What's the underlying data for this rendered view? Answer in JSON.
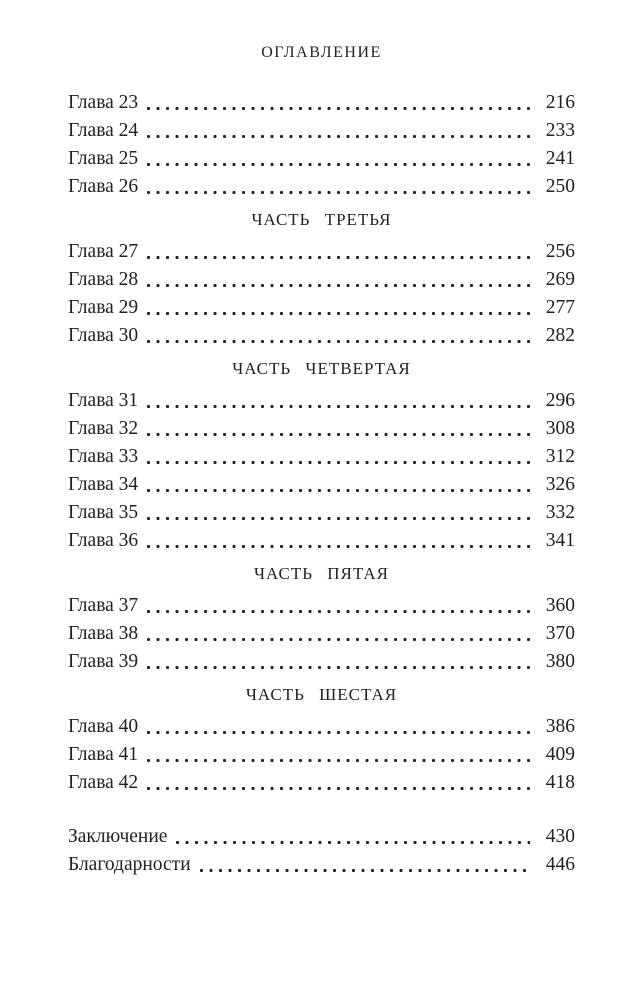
{
  "page": {
    "title": "ОГЛАВЛЕНИЕ",
    "text_color": "#222222",
    "background_color": "#ffffff"
  },
  "toc": {
    "sections": [
      {
        "heading": "",
        "entries": [
          {
            "label": "Глава 23",
            "page": "216"
          },
          {
            "label": "Глава 24",
            "page": "233"
          },
          {
            "label": "Глава 25",
            "page": "241"
          },
          {
            "label": "Глава 26",
            "page": "250"
          }
        ]
      },
      {
        "heading": "ЧАСТЬ ТРЕТЬЯ",
        "entries": [
          {
            "label": "Глава 27",
            "page": "256"
          },
          {
            "label": "Глава 28",
            "page": "269"
          },
          {
            "label": "Глава 29",
            "page": "277"
          },
          {
            "label": "Глава 30",
            "page": "282"
          }
        ]
      },
      {
        "heading": "ЧАСТЬ ЧЕТВЕРТАЯ",
        "entries": [
          {
            "label": "Глава 31",
            "page": "296"
          },
          {
            "label": "Глава 32",
            "page": "308"
          },
          {
            "label": "Глава 33",
            "page": "312"
          },
          {
            "label": "Глава 34",
            "page": "326"
          },
          {
            "label": "Глава 35",
            "page": "332"
          },
          {
            "label": "Глава 36",
            "page": "341"
          }
        ]
      },
      {
        "heading": "ЧАСТЬ ПЯТАЯ",
        "entries": [
          {
            "label": "Глава 37",
            "page": "360"
          },
          {
            "label": "Глава 38",
            "page": "370"
          },
          {
            "label": "Глава 39",
            "page": "380"
          }
        ]
      },
      {
        "heading": "ЧАСТЬ ШЕСТАЯ",
        "entries": [
          {
            "label": "Глава 40",
            "page": "386"
          },
          {
            "label": "Глава 41",
            "page": "409"
          },
          {
            "label": "Глава 42",
            "page": "418"
          }
        ]
      }
    ],
    "back_matter": [
      {
        "label": "Заключение",
        "page": "430"
      },
      {
        "label": "Благодарности",
        "page": "446"
      }
    ]
  }
}
